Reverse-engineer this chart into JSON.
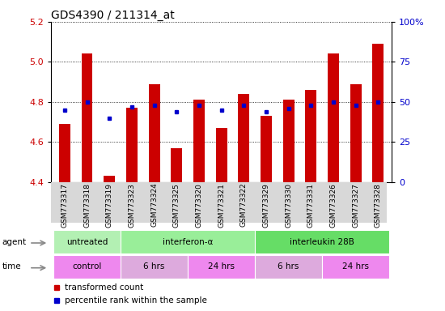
{
  "title": "GDS4390 / 211314_at",
  "samples": [
    "GSM773317",
    "GSM773318",
    "GSM773319",
    "GSM773323",
    "GSM773324",
    "GSM773325",
    "GSM773320",
    "GSM773321",
    "GSM773322",
    "GSM773329",
    "GSM773330",
    "GSM773331",
    "GSM773326",
    "GSM773327",
    "GSM773328"
  ],
  "bar_values": [
    4.69,
    5.04,
    4.43,
    4.77,
    4.89,
    4.57,
    4.81,
    4.67,
    4.84,
    4.73,
    4.81,
    4.86,
    5.04,
    4.89,
    5.09
  ],
  "bar_bottom": 4.4,
  "blue_dot_percentiles": [
    45,
    50,
    40,
    47,
    48,
    44,
    48,
    45,
    48,
    44,
    46,
    48,
    50,
    48,
    50
  ],
  "bar_color": "#cc0000",
  "dot_color": "#0000cc",
  "ylim_left": [
    4.4,
    5.2
  ],
  "ylim_right": [
    0,
    100
  ],
  "yticks_left": [
    4.4,
    4.6,
    4.8,
    5.0,
    5.2
  ],
  "yticks_right": [
    0,
    25,
    50,
    75,
    100
  ],
  "ytick_labels_right": [
    "0",
    "25",
    "50",
    "75",
    "100%"
  ],
  "agent_groups": [
    {
      "label": "untreated",
      "start": 0,
      "end": 3,
      "color": "#b3f0b3"
    },
    {
      "label": "interferon-α",
      "start": 3,
      "end": 9,
      "color": "#99ee99"
    },
    {
      "label": "interleukin 28B",
      "start": 9,
      "end": 15,
      "color": "#66dd66"
    }
  ],
  "time_groups": [
    {
      "label": "control",
      "start": 0,
      "end": 3,
      "color": "#ee88ee"
    },
    {
      "label": "6 hrs",
      "start": 3,
      "end": 6,
      "color": "#ddaadd"
    },
    {
      "label": "24 hrs",
      "start": 6,
      "end": 9,
      "color": "#ee88ee"
    },
    {
      "label": "6 hrs",
      "start": 9,
      "end": 12,
      "color": "#ddaadd"
    },
    {
      "label": "24 hrs",
      "start": 12,
      "end": 15,
      "color": "#ee88ee"
    }
  ],
  "legend_items": [
    {
      "label": "transformed count",
      "color": "#cc0000"
    },
    {
      "label": "percentile rank within the sample",
      "color": "#0000cc"
    }
  ],
  "bar_width": 0.5,
  "tick_label_color_left": "#cc0000",
  "tick_label_color_right": "#0000cc",
  "title_fontsize": 10,
  "tick_fontsize": 8,
  "sample_fontsize": 6.5
}
